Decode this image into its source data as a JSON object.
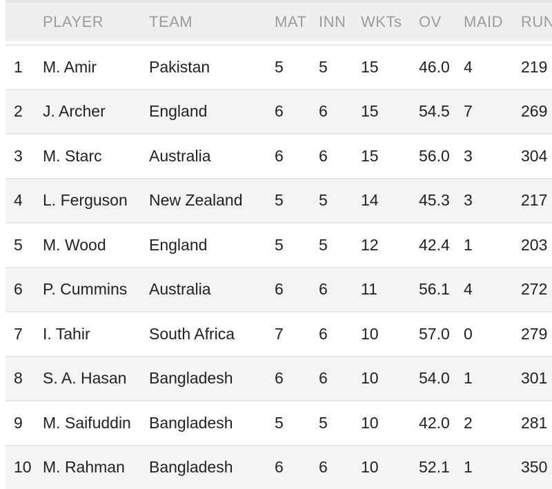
{
  "table": {
    "headers": [
      {
        "key": "rank",
        "label": ""
      },
      {
        "key": "player",
        "label": "PLAYER"
      },
      {
        "key": "team",
        "label": "TEAM"
      },
      {
        "key": "mat",
        "label": "MAT"
      },
      {
        "key": "inn",
        "label": "INN"
      },
      {
        "key": "wkts",
        "label": "WKTs"
      },
      {
        "key": "ov",
        "label": "OV"
      },
      {
        "key": "maid",
        "label": "MAID"
      },
      {
        "key": "runs",
        "label": "RUNS"
      }
    ],
    "rows": [
      {
        "rank": "1",
        "player": "M. Amir",
        "team": "Pakistan",
        "mat": "5",
        "inn": "5",
        "wkts": "15",
        "ov": "46.0",
        "maid": "4",
        "runs": "219"
      },
      {
        "rank": "2",
        "player": "J. Archer",
        "team": "England",
        "mat": "6",
        "inn": "6",
        "wkts": "15",
        "ov": "54.5",
        "maid": "7",
        "runs": "269"
      },
      {
        "rank": "3",
        "player": "M. Starc",
        "team": "Australia",
        "mat": "6",
        "inn": "6",
        "wkts": "15",
        "ov": "56.0",
        "maid": "3",
        "runs": "304"
      },
      {
        "rank": "4",
        "player": "L. Ferguson",
        "team": "New Zealand",
        "mat": "5",
        "inn": "5",
        "wkts": "14",
        "ov": "45.3",
        "maid": "3",
        "runs": "217"
      },
      {
        "rank": "5",
        "player": "M. Wood",
        "team": "England",
        "mat": "5",
        "inn": "5",
        "wkts": "12",
        "ov": "42.4",
        "maid": "1",
        "runs": "203"
      },
      {
        "rank": "6",
        "player": "P. Cummins",
        "team": "Australia",
        "mat": "6",
        "inn": "6",
        "wkts": "11",
        "ov": "56.1",
        "maid": "4",
        "runs": "272"
      },
      {
        "rank": "7",
        "player": "I. Tahir",
        "team": "South Africa",
        "mat": "7",
        "inn": "6",
        "wkts": "10",
        "ov": "57.0",
        "maid": "0",
        "runs": "279"
      },
      {
        "rank": "8",
        "player": "S. A. Hasan",
        "team": "Bangladesh",
        "mat": "6",
        "inn": "6",
        "wkts": "10",
        "ov": "54.0",
        "maid": "1",
        "runs": "301"
      },
      {
        "rank": "9",
        "player": "M. Saifuddin",
        "team": "Bangladesh",
        "mat": "5",
        "inn": "5",
        "wkts": "10",
        "ov": "42.0",
        "maid": "2",
        "runs": "281"
      },
      {
        "rank": "10",
        "player": "M. Rahman",
        "team": "Bangladesh",
        "mat": "6",
        "inn": "6",
        "wkts": "10",
        "ov": "52.1",
        "maid": "1",
        "runs": "350"
      }
    ]
  },
  "colors": {
    "header_bg": "#efefef",
    "header_text": "#9b9b9b",
    "row_bg": "#ffffff",
    "row_alt_bg": "#f4f4f4",
    "row_border": "#e6e6e6",
    "body_text": "#212121",
    "top_strip": "#e3e3e3"
  }
}
